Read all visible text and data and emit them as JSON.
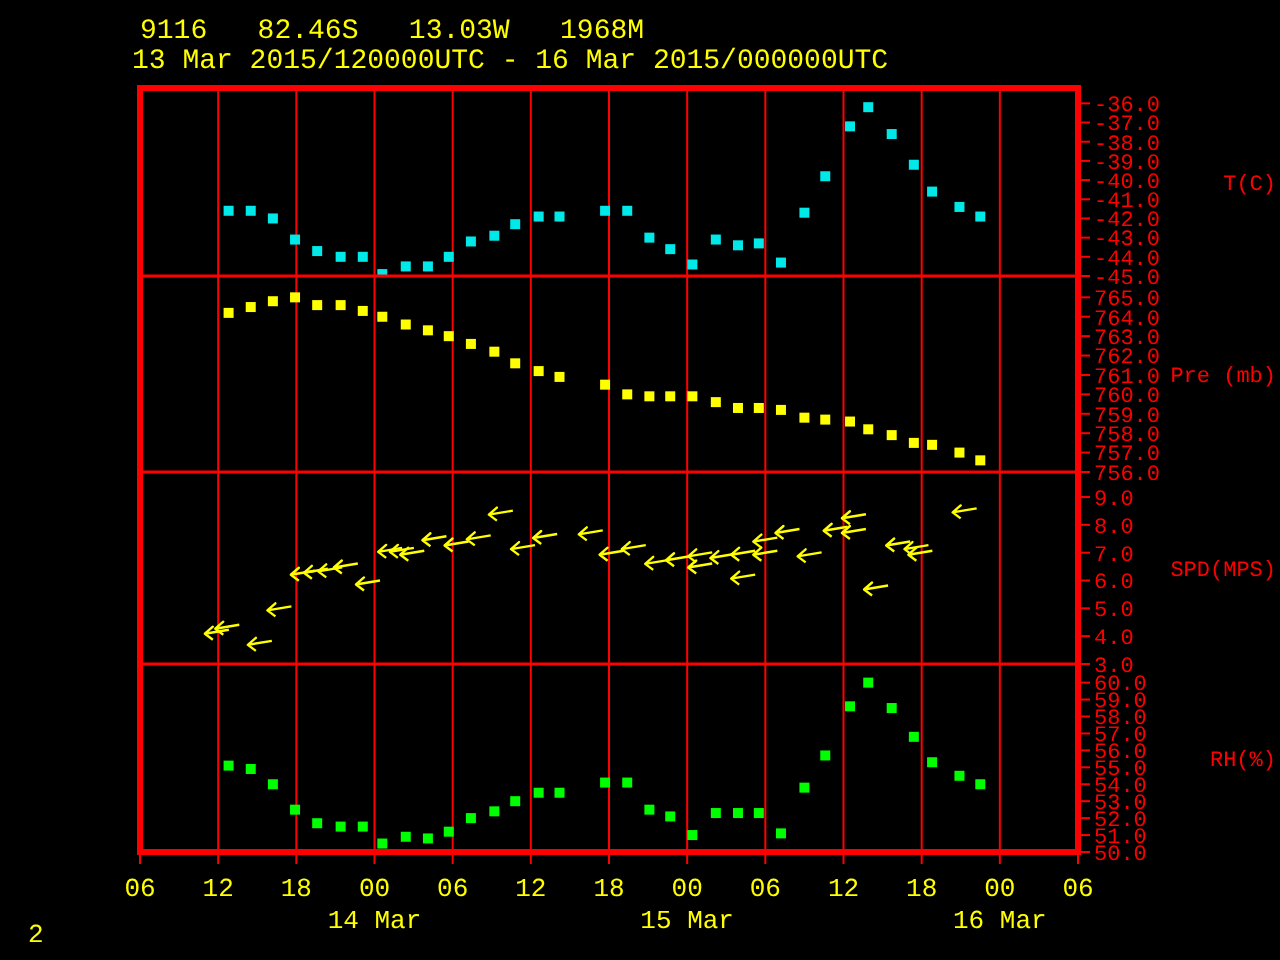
{
  "chart_data": [
    {
      "type": "scatter",
      "title": "9116   82.46S   13.03W   1968M",
      "subtitle": "13 Mar 2015/120000UTC - 16 Mar 2015/000000UTC",
      "ylabel": "T(C)",
      "marker": "square",
      "grid": "x",
      "tick_labels": "y",
      "color": "#00e8e8",
      "xlim": [
        "2015-03-13T06:00",
        "2015-03-16T06:00"
      ],
      "xticks": [
        "2015-03-13T06:00",
        "2015-03-13T12:00",
        "2015-03-13T18:00",
        "2015-03-14T00:00",
        "2015-03-14T06:00",
        "2015-03-14T12:00",
        "2015-03-14T18:00",
        "2015-03-15T00:00",
        "2015-03-15T06:00",
        "2015-03-15T12:00",
        "2015-03-15T18:00",
        "2015-03-16T00:00",
        "2015-03-16T06:00"
      ],
      "ylim": [
        -45,
        -35.2
      ],
      "yticks": [
        {
          "value": -45,
          "label": "-45.0"
        },
        {
          "value": -44,
          "label": "-44.0"
        },
        {
          "value": -43,
          "label": "-43.0"
        },
        {
          "value": -42,
          "label": "-42.0"
        },
        {
          "value": -41,
          "label": "-41.0"
        },
        {
          "value": -40,
          "label": "-40.0"
        },
        {
          "value": -39,
          "label": "-39.0"
        },
        {
          "value": -38,
          "label": "-38.0"
        },
        {
          "value": -37,
          "label": "-37.0"
        },
        {
          "value": -36,
          "label": "-36.0"
        }
      ],
      "x": [
        "2015-03-13T12:48",
        "2015-03-13T14:30",
        "2015-03-13T16:12",
        "2015-03-13T17:54",
        "2015-03-13T19:36",
        "2015-03-13T21:24",
        "2015-03-13T23:06",
        "2015-03-14T00:36",
        "2015-03-14T02:24",
        "2015-03-14T04:06",
        "2015-03-14T05:42",
        "2015-03-14T07:24",
        "2015-03-14T09:12",
        "2015-03-14T10:48",
        "2015-03-14T12:36",
        "2015-03-14T14:12",
        "2015-03-14T17:42",
        "2015-03-14T19:24",
        "2015-03-14T21:06",
        "2015-03-14T22:42",
        "2015-03-15T00:24",
        "2015-03-15T02:12",
        "2015-03-15T03:54",
        "2015-03-15T05:30",
        "2015-03-15T07:12",
        "2015-03-15T09:00",
        "2015-03-15T10:36",
        "2015-03-15T12:30",
        "2015-03-15T13:54",
        "2015-03-15T15:42",
        "2015-03-15T17:24",
        "2015-03-15T18:48",
        "2015-03-15T20:54",
        "2015-03-15T22:30"
      ],
      "values": [
        -41.6,
        -41.6,
        -42.0,
        -43.1,
        -43.7,
        -44.0,
        -44.0,
        -44.9,
        -44.5,
        -44.5,
        -44.0,
        -43.2,
        -42.9,
        -42.3,
        -41.9,
        -41.9,
        -41.6,
        -41.6,
        -43.0,
        -43.6,
        -44.4,
        -43.1,
        -43.4,
        -43.3,
        -44.3,
        -41.7,
        -39.8,
        -37.2,
        -36.2,
        -37.6,
        -39.2,
        -40.6,
        -41.4,
        -41.9
      ]
    },
    {
      "type": "scatter",
      "ylabel": "Pre (mb)",
      "marker": "square",
      "grid": "x",
      "tick_labels": "y",
      "color": "#ffff00",
      "xlim": [
        "2015-03-13T06:00",
        "2015-03-16T06:00"
      ],
      "xticks": [
        "2015-03-13T06:00",
        "2015-03-13T12:00",
        "2015-03-13T18:00",
        "2015-03-14T00:00",
        "2015-03-14T06:00",
        "2015-03-14T12:00",
        "2015-03-14T18:00",
        "2015-03-15T00:00",
        "2015-03-15T06:00",
        "2015-03-15T12:00",
        "2015-03-15T18:00",
        "2015-03-16T00:00",
        "2015-03-16T06:00"
      ],
      "ylim": [
        756,
        766.1
      ],
      "yticks": [
        {
          "value": 756,
          "label": "756.0"
        },
        {
          "value": 757,
          "label": "757.0"
        },
        {
          "value": 758,
          "label": "758.0"
        },
        {
          "value": 759,
          "label": "759.0"
        },
        {
          "value": 760,
          "label": "760.0"
        },
        {
          "value": 761,
          "label": "761.0"
        },
        {
          "value": 762,
          "label": "762.0"
        },
        {
          "value": 763,
          "label": "763.0"
        },
        {
          "value": 764,
          "label": "764.0"
        },
        {
          "value": 765,
          "label": "765.0"
        }
      ],
      "x": [
        "2015-03-13T12:48",
        "2015-03-13T14:30",
        "2015-03-13T16:12",
        "2015-03-13T17:54",
        "2015-03-13T19:36",
        "2015-03-13T21:24",
        "2015-03-13T23:06",
        "2015-03-14T00:36",
        "2015-03-14T02:24",
        "2015-03-14T04:06",
        "2015-03-14T05:42",
        "2015-03-14T07:24",
        "2015-03-14T09:12",
        "2015-03-14T10:48",
        "2015-03-14T12:36",
        "2015-03-14T14:12",
        "2015-03-14T17:42",
        "2015-03-14T19:24",
        "2015-03-14T21:06",
        "2015-03-14T22:42",
        "2015-03-15T00:24",
        "2015-03-15T02:12",
        "2015-03-15T03:54",
        "2015-03-15T05:30",
        "2015-03-15T07:12",
        "2015-03-15T09:00",
        "2015-03-15T10:36",
        "2015-03-15T12:30",
        "2015-03-15T13:54",
        "2015-03-15T15:42",
        "2015-03-15T17:24",
        "2015-03-15T18:48",
        "2015-03-15T20:54",
        "2015-03-15T22:30"
      ],
      "values": [
        764.2,
        764.5,
        764.8,
        765.0,
        764.6,
        764.6,
        764.3,
        764.0,
        763.6,
        763.3,
        763.0,
        762.6,
        762.2,
        761.6,
        761.2,
        760.9,
        760.5,
        760.0,
        759.9,
        759.9,
        759.9,
        759.6,
        759.3,
        759.3,
        759.2,
        758.8,
        758.7,
        758.6,
        758.2,
        757.9,
        757.5,
        757.4,
        757.0,
        756.6
      ]
    },
    {
      "type": "scatter",
      "ylabel": "SPD(MPS)",
      "grid": "x",
      "tick_labels": "y",
      "color": "#ffff00",
      "xlim": [
        "2015-03-13T06:00",
        "2015-03-16T06:00"
      ],
      "xticks": [
        "2015-03-13T06:00",
        "2015-03-13T12:00",
        "2015-03-13T18:00",
        "2015-03-14T00:00",
        "2015-03-14T06:00",
        "2015-03-14T12:00",
        "2015-03-14T18:00",
        "2015-03-15T00:00",
        "2015-03-15T06:00",
        "2015-03-15T12:00",
        "2015-03-15T18:00",
        "2015-03-16T00:00",
        "2015-03-16T06:00"
      ],
      "ylim": [
        3,
        9.9
      ],
      "yticks": [
        {
          "value": 3,
          "label": "3.0"
        },
        {
          "value": 4,
          "label": "4.0"
        },
        {
          "value": 5,
          "label": "5.0"
        },
        {
          "value": 6,
          "label": "6.0"
        },
        {
          "value": 7,
          "label": "7.0"
        },
        {
          "value": 8,
          "label": "8.0"
        },
        {
          "value": 9,
          "label": "9.0"
        }
      ],
      "x": [
        "2015-03-13T11:54",
        "2015-03-13T12:42",
        "2015-03-13T15:12",
        "2015-03-13T16:42",
        "2015-03-13T18:30",
        "2015-03-13T19:30",
        "2015-03-13T20:36",
        "2015-03-13T21:48",
        "2015-03-13T23:30",
        "2015-03-14T01:12",
        "2015-03-14T02:06",
        "2015-03-14T02:54",
        "2015-03-14T04:36",
        "2015-03-14T06:18",
        "2015-03-14T08:00",
        "2015-03-14T09:42",
        "2015-03-14T11:24",
        "2015-03-14T13:06",
        "2015-03-14T16:36",
        "2015-03-14T18:12",
        "2015-03-14T19:54",
        "2015-03-14T21:42",
        "2015-03-14T23:18",
        "2015-03-15T01:00",
        "2015-03-15T01:00",
        "2015-03-15T02:42",
        "2015-03-15T04:18",
        "2015-03-15T04:18",
        "2015-03-15T06:00",
        "2015-03-15T06:00",
        "2015-03-15T07:42",
        "2015-03-15T09:24",
        "2015-03-15T11:24",
        "2015-03-15T12:48",
        "2015-03-15T12:48",
        "2015-03-15T14:30",
        "2015-03-15T16:12",
        "2015-03-15T17:36",
        "2015-03-15T17:54",
        "2015-03-15T21:18"
      ],
      "values": [
        4.16,
        4.34,
        3.76,
        5.0,
        6.28,
        6.35,
        6.4,
        6.54,
        5.93,
        7.1,
        7.1,
        7.0,
        7.52,
        7.33,
        7.55,
        8.44,
        7.2,
        7.6,
        7.73,
        7.0,
        7.2,
        6.67,
        6.8,
        6.54,
        6.94,
        6.88,
        7.0,
        6.14,
        7.47,
        7.0,
        7.78,
        6.94,
        7.86,
        8.31,
        7.78,
        5.75,
        7.33,
        7.2,
        7.0,
        8.52
      ]
    },
    {
      "type": "scatter",
      "ylabel": "RH(%)",
      "marker": "square",
      "grid": "x",
      "color": "#00ff00",
      "annotations": [
        "2"
      ],
      "xlim": [
        "2015-03-13T06:00",
        "2015-03-16T06:00"
      ],
      "xticks": [
        {
          "value": "2015-03-13T06:00",
          "label": "06"
        },
        {
          "value": "2015-03-13T12:00",
          "label": "12"
        },
        {
          "value": "2015-03-13T18:00",
          "label": "18"
        },
        {
          "value": "2015-03-14T00:00",
          "label": "00\n14 Mar"
        },
        {
          "value": "2015-03-14T06:00",
          "label": "06"
        },
        {
          "value": "2015-03-14T12:00",
          "label": "12"
        },
        {
          "value": "2015-03-14T18:00",
          "label": "18"
        },
        {
          "value": "2015-03-15T00:00",
          "label": "00\n15 Mar"
        },
        {
          "value": "2015-03-15T06:00",
          "label": "06"
        },
        {
          "value": "2015-03-15T12:00",
          "label": "12"
        },
        {
          "value": "2015-03-15T18:00",
          "label": "18"
        },
        {
          "value": "2015-03-16T00:00",
          "label": "00\n16 Mar"
        },
        {
          "value": "2015-03-16T06:00",
          "label": "06"
        }
      ],
      "ylim": [
        50,
        61.1
      ],
      "yticks": [
        {
          "value": 50,
          "label": "50.0"
        },
        {
          "value": 51,
          "label": "51.0"
        },
        {
          "value": 52,
          "label": "52.0"
        },
        {
          "value": 53,
          "label": "53.0"
        },
        {
          "value": 54,
          "label": "54.0"
        },
        {
          "value": 55,
          "label": "55.0"
        },
        {
          "value": 56,
          "label": "56.0"
        },
        {
          "value": 57,
          "label": "57.0"
        },
        {
          "value": 58,
          "label": "58.0"
        },
        {
          "value": 59,
          "label": "59.0"
        },
        {
          "value": 60,
          "label": "60.0"
        }
      ],
      "x": [
        "2015-03-13T12:48",
        "2015-03-13T14:30",
        "2015-03-13T16:12",
        "2015-03-13T17:54",
        "2015-03-13T19:36",
        "2015-03-13T21:24",
        "2015-03-13T23:06",
        "2015-03-14T00:36",
        "2015-03-14T02:24",
        "2015-03-14T04:06",
        "2015-03-14T05:42",
        "2015-03-14T07:24",
        "2015-03-14T09:12",
        "2015-03-14T10:48",
        "2015-03-14T12:36",
        "2015-03-14T14:12",
        "2015-03-14T17:42",
        "2015-03-14T19:24",
        "2015-03-14T21:06",
        "2015-03-14T22:42",
        "2015-03-15T00:24",
        "2015-03-15T02:12",
        "2015-03-15T03:54",
        "2015-03-15T05:30",
        "2015-03-15T07:12",
        "2015-03-15T09:00",
        "2015-03-15T10:36",
        "2015-03-15T12:30",
        "2015-03-15T13:54",
        "2015-03-15T15:42",
        "2015-03-15T17:24",
        "2015-03-15T18:48",
        "2015-03-15T20:54",
        "2015-03-15T22:30"
      ],
      "values": [
        55.1,
        54.9,
        54.0,
        52.5,
        51.7,
        51.5,
        51.5,
        50.5,
        50.9,
        50.8,
        51.2,
        52.0,
        52.4,
        53.0,
        53.5,
        53.5,
        54.1,
        54.1,
        52.5,
        52.1,
        51.0,
        52.3,
        52.3,
        52.3,
        51.1,
        53.8,
        55.7,
        58.6,
        60.0,
        58.5,
        56.8,
        55.3,
        54.5,
        54.0
      ]
    }
  ]
}
